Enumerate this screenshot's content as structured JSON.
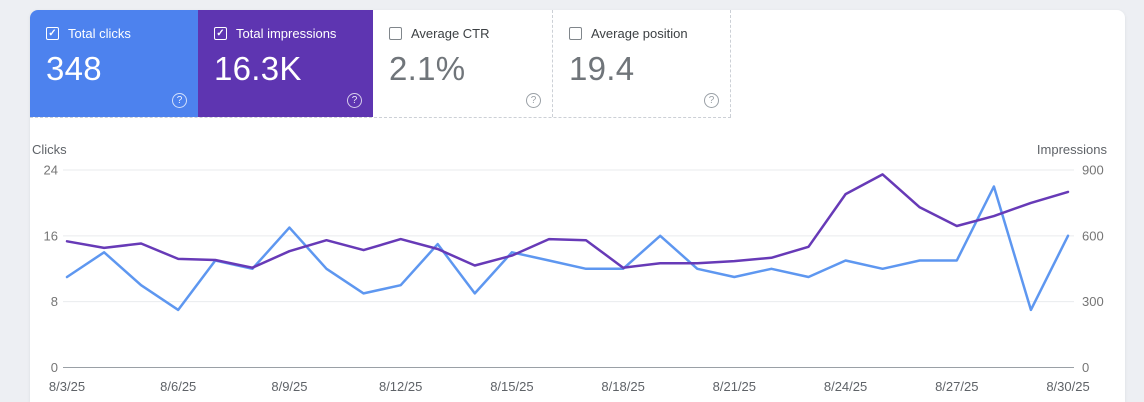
{
  "ui": {
    "check_glyph": "✓",
    "help_glyph": "?"
  },
  "metric_cards": [
    {
      "label": "Total clicks",
      "value": "348",
      "checked": true,
      "bg_color": "#4d82ee",
      "text_color": "#ffffff"
    },
    {
      "label": "Total impressions",
      "value": "16.3K",
      "checked": true,
      "bg_color": "#5e35b1",
      "text_color": "#ffffff"
    },
    {
      "label": "Average CTR",
      "value": "2.1%",
      "checked": false
    },
    {
      "label": "Average position",
      "value": "19.4",
      "checked": false
    }
  ],
  "chart_data": {
    "type": "line",
    "dates": [
      "8/3/25",
      "8/4/25",
      "8/5/25",
      "8/6/25",
      "8/7/25",
      "8/8/25",
      "8/9/25",
      "8/10/25",
      "8/11/25",
      "8/12/25",
      "8/13/25",
      "8/14/25",
      "8/15/25",
      "8/16/25",
      "8/17/25",
      "8/18/25",
      "8/19/25",
      "8/20/25",
      "8/21/25",
      "8/22/25",
      "8/23/25",
      "8/24/25",
      "8/25/25",
      "8/26/25",
      "8/27/25",
      "8/28/25",
      "8/29/25",
      "8/30/25"
    ],
    "x_tick_every": 3,
    "grid": true,
    "y_left": {
      "label": "Clicks",
      "ticks": [
        0,
        8,
        16,
        24
      ],
      "max": 24
    },
    "y_right": {
      "label": "Impressions",
      "ticks": [
        0,
        300,
        600,
        900
      ],
      "max": 900
    },
    "series": [
      {
        "id": "clicks-line",
        "name": "Total clicks",
        "axis": "left",
        "color": "#5e97f0",
        "values": [
          11,
          14,
          10,
          7,
          13,
          12,
          17,
          12,
          9,
          10,
          15,
          9,
          14,
          13,
          12,
          12,
          16,
          12,
          11,
          12,
          11,
          13,
          12,
          13,
          13,
          22,
          7,
          16
        ]
      },
      {
        "id": "impressions-line",
        "name": "Total impressions",
        "axis": "right",
        "color": "#673ab7",
        "values": [
          575,
          545,
          565,
          495,
          490,
          455,
          530,
          580,
          535,
          585,
          540,
          465,
          510,
          585,
          580,
          455,
          475,
          475,
          485,
          500,
          550,
          790,
          880,
          730,
          645,
          690,
          750,
          800
        ]
      }
    ]
  }
}
